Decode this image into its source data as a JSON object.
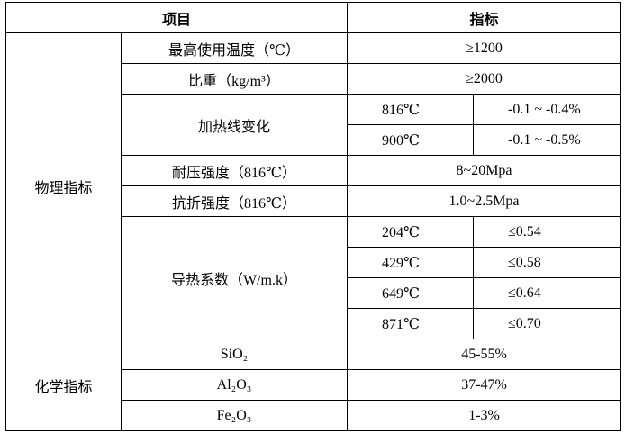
{
  "header": [
    "项目",
    "指标"
  ],
  "groups": [
    {
      "label": "物理指标",
      "rows": [
        {
          "item": "最高使用温度（℃）",
          "value": "≥1200"
        },
        {
          "item": "比重（kg/m³）",
          "value": "≥2000"
        },
        {
          "item": "加热线变化",
          "sub": [
            [
              "816℃",
              "-0.1 ~ -0.4%"
            ],
            [
              "900℃",
              "-0.1 ~ -0.5%"
            ]
          ]
        },
        {
          "item": "耐压强度（816℃）",
          "value": "8~20Mpa"
        },
        {
          "item": "抗折强度（816℃）",
          "value": "1.0~2.5Mpa"
        },
        {
          "item": "导热系数（W/m.k）",
          "sub": [
            [
              "204℃",
              "≤0.54"
            ],
            [
              "429℃",
              "≤0.58"
            ],
            [
              "649℃",
              "≤0.64"
            ],
            [
              "871℃",
              "≤0.70"
            ]
          ]
        }
      ]
    },
    {
      "label": "化学指标",
      "rows": [
        {
          "item": "SiO₂",
          "value": "45-55%"
        },
        {
          "item": "Al₂O₃",
          "value": "37-47%"
        },
        {
          "item": "Fe₂O₃",
          "value": "1-3%"
        }
      ]
    }
  ]
}
